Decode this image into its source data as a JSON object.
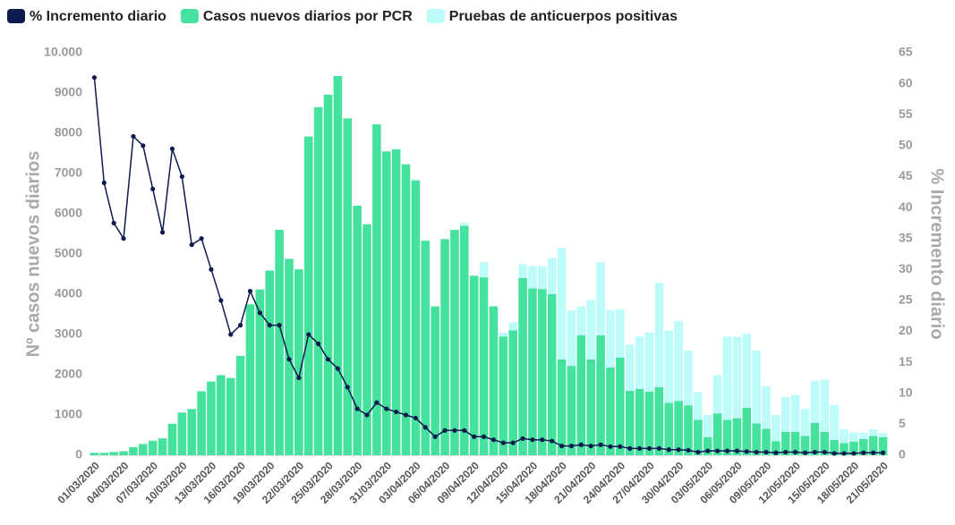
{
  "chart_data": {
    "type": "bar",
    "stacked": true,
    "y_label": "Nº casos nuevos diarios",
    "y2_label": "% Incremento diario",
    "categories": [
      "01/03/2020",
      null,
      null,
      "04/03/2020",
      null,
      null,
      "07/03/2020",
      null,
      null,
      "10/03/2020",
      null,
      null,
      "13/03/2020",
      null,
      null,
      "16/03/2020",
      null,
      null,
      "19/03/2020",
      null,
      null,
      "22/03/2020",
      null,
      null,
      "25/03/2020",
      null,
      null,
      "28/03/2020",
      null,
      null,
      "31/03/2020",
      null,
      null,
      "03/04/2020",
      null,
      null,
      "06/04/2020",
      null,
      null,
      "09/04/2020",
      null,
      null,
      "12/04/2020",
      null,
      null,
      "15/04/2020",
      null,
      null,
      "18/04/2020",
      null,
      null,
      "21/04/2020",
      null,
      null,
      "24/04/2020",
      null,
      null,
      "27/04/2020",
      null,
      null,
      "30/04/2020",
      null,
      null,
      "03/05/2020",
      null,
      null,
      "06/05/2020",
      null,
      null,
      "09/05/2020",
      null,
      null,
      "12/05/2020",
      null,
      null,
      "15/05/2020",
      null,
      null,
      "18/05/2020",
      null,
      null,
      "21/05/2020"
    ],
    "series": [
      {
        "name": "% Incremento diario",
        "type": "line",
        "axis": "y2",
        "color": "#0d1b4f",
        "values": [
          61,
          44,
          37.5,
          35,
          51.5,
          50,
          43,
          36,
          49.5,
          45,
          34,
          35,
          30,
          25,
          19.5,
          21,
          26.5,
          23,
          21,
          21,
          15.5,
          12.5,
          19.5,
          18,
          15.5,
          14,
          11,
          7.5,
          6.5,
          8.5,
          7.5,
          7,
          6.5,
          6,
          4.5,
          3,
          4,
          4,
          4,
          3,
          3,
          2.5,
          2,
          2,
          2.7,
          2.5,
          2.5,
          2.3,
          1.5,
          1.5,
          1.7,
          1.5,
          1.7,
          1.4,
          1.4,
          1.1,
          1.1,
          1.1,
          1.1,
          0.9,
          0.9,
          0.8,
          0.5,
          0.7,
          0.7,
          0.7,
          0.7,
          0.6,
          0.5,
          0.5,
          0.4,
          0.5,
          0.5,
          0.4,
          0.5,
          0.5,
          0.3,
          0.3,
          0.3,
          0.4,
          0.4,
          0.4
        ]
      },
      {
        "name": "Casos nuevos diarios por PCR",
        "type": "bar",
        "color": "#45e29e",
        "values": [
          60,
          60,
          80,
          100,
          200,
          280,
          360,
          420,
          780,
          1060,
          1150,
          1590,
          1830,
          1990,
          1920,
          2470,
          3750,
          4120,
          4590,
          5600,
          4880,
          4620,
          7920,
          8650,
          8960,
          9420,
          8370,
          6200,
          5740,
          8220,
          7550,
          7600,
          7230,
          6830,
          5330,
          3700,
          5370,
          5600,
          5700,
          4460,
          4420,
          3700,
          2950,
          3100,
          4400,
          4150,
          4130,
          4000,
          2380,
          2220,
          2980,
          2380,
          2980,
          2180,
          2430,
          1600,
          1650,
          1580,
          1690,
          1300,
          1350,
          1240,
          880,
          450,
          1040,
          880,
          920,
          1180,
          790,
          660,
          350,
          580,
          580,
          480,
          800,
          580,
          380,
          300,
          340,
          400,
          480,
          450
        ]
      },
      {
        "name": "Pruebas de anticuerpos positivas",
        "type": "bar",
        "color": "#bdfbfb",
        "values": [
          0,
          0,
          0,
          0,
          0,
          0,
          0,
          0,
          0,
          0,
          0,
          0,
          0,
          0,
          0,
          0,
          0,
          0,
          0,
          0,
          0,
          0,
          0,
          0,
          0,
          0,
          0,
          0,
          0,
          0,
          0,
          0,
          0,
          0,
          0,
          0,
          0,
          0,
          80,
          0,
          380,
          0,
          100,
          200,
          350,
          550,
          570,
          900,
          2770,
          1380,
          720,
          1470,
          1820,
          1420,
          1190,
          1150,
          1300,
          1470,
          2590,
          1800,
          1980,
          1360,
          690,
          550,
          950,
          2070,
          2020,
          1840,
          1810,
          1060,
          650,
          870,
          920,
          670,
          1050,
          1300,
          870,
          350,
          230,
          160,
          170,
          100
        ]
      }
    ],
    "ylim": [
      0,
      10000
    ],
    "yticks": [
      0,
      1000,
      2000,
      3000,
      4000,
      5000,
      6000,
      7000,
      8000,
      9000,
      {
        "value": 10000,
        "label": "10.000"
      }
    ],
    "y2lim": [
      0,
      65
    ],
    "y2ticks": [
      0,
      5,
      10,
      15,
      20,
      25,
      30,
      35,
      40,
      45,
      50,
      55,
      60,
      65
    ],
    "legend": "top-left"
  }
}
